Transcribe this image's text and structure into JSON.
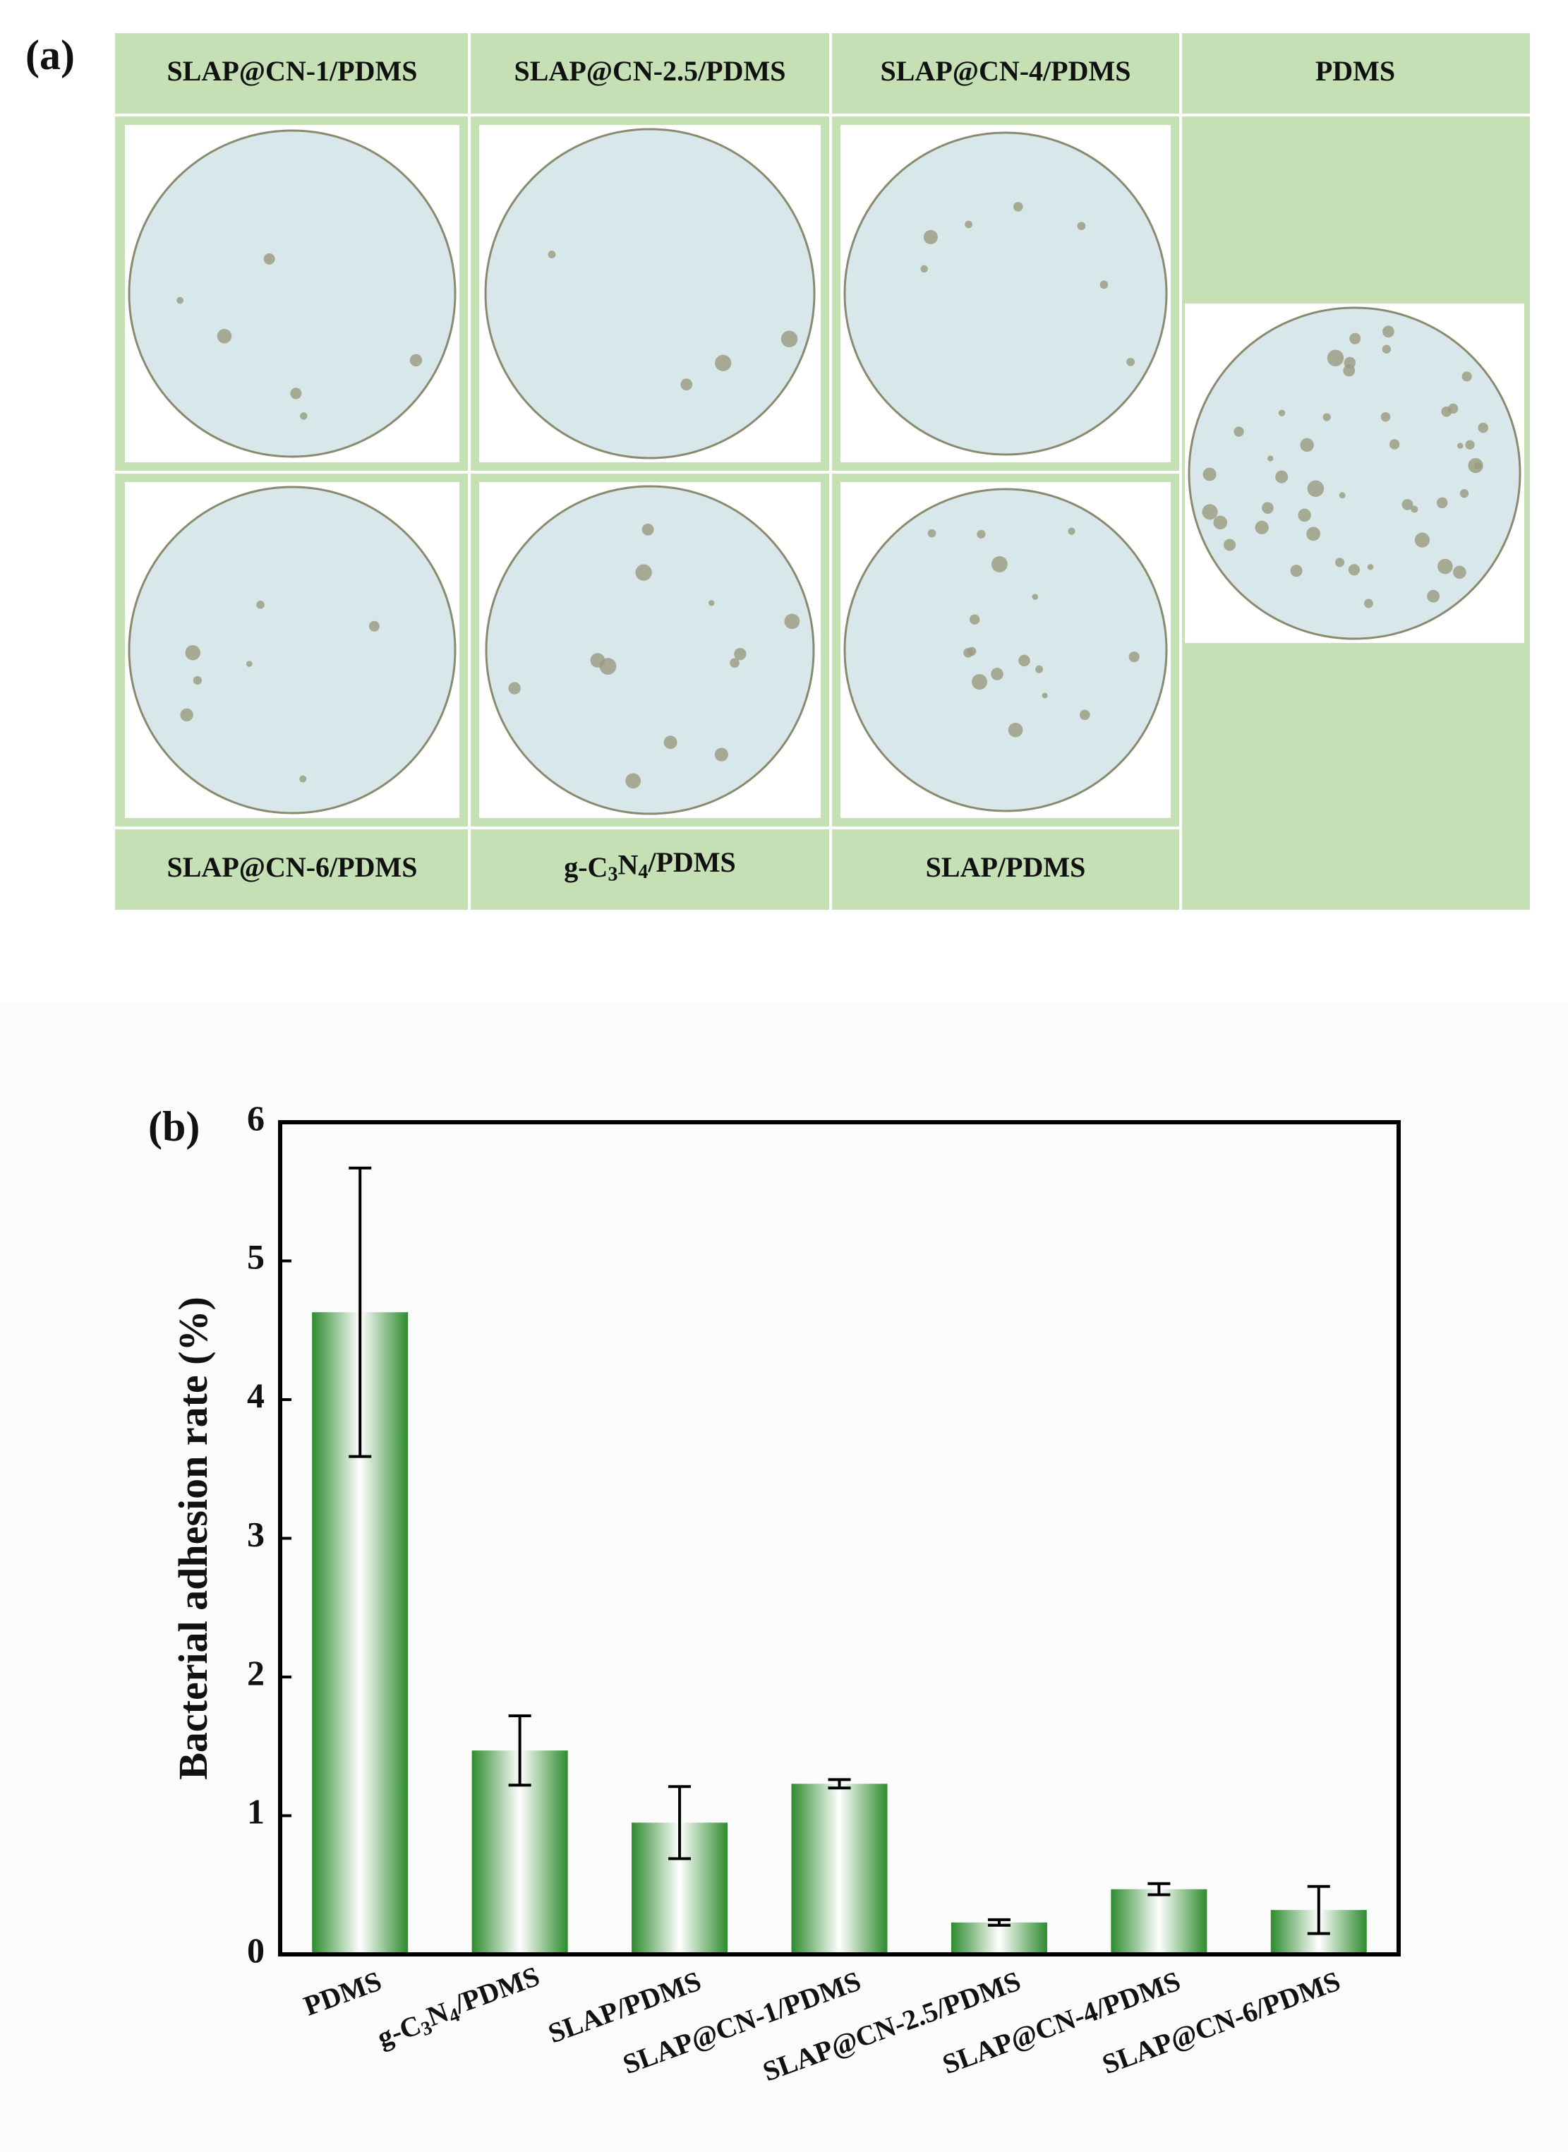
{
  "panel_a": {
    "label": "(a)",
    "top_labels": [
      "SLAP@CN-1/PDMS",
      "SLAP@CN-2.5/PDMS",
      "SLAP@CN-4/PDMS",
      "PDMS"
    ],
    "bottom_labels": [
      "SLAP@CN-6/PDMS",
      "g-C3N4/PDMS",
      "SLAP/PDMS"
    ]
  },
  "chart_data": {
    "type": "bar",
    "panel_label": "(b)",
    "ylabel": "Bacterial adhesion rate (%)",
    "categories": [
      "PDMS",
      "g-C3N4/PDMS",
      "SLAP/PDMS",
      "SLAP@CN-1/PDMS",
      "SLAP@CN-2.5/PDMS",
      "SLAP@CN-4/PDMS",
      "SLAP@CN-6/PDMS"
    ],
    "values": [
      4.63,
      1.47,
      0.95,
      1.23,
      0.23,
      0.47,
      0.32
    ],
    "errors": [
      1.04,
      0.25,
      0.26,
      0.03,
      0.02,
      0.04,
      0.17
    ],
    "color": "#2e8b2e",
    "ylim": [
      0,
      6
    ],
    "yticks": [
      0,
      1,
      2,
      3,
      4,
      5,
      6
    ]
  }
}
